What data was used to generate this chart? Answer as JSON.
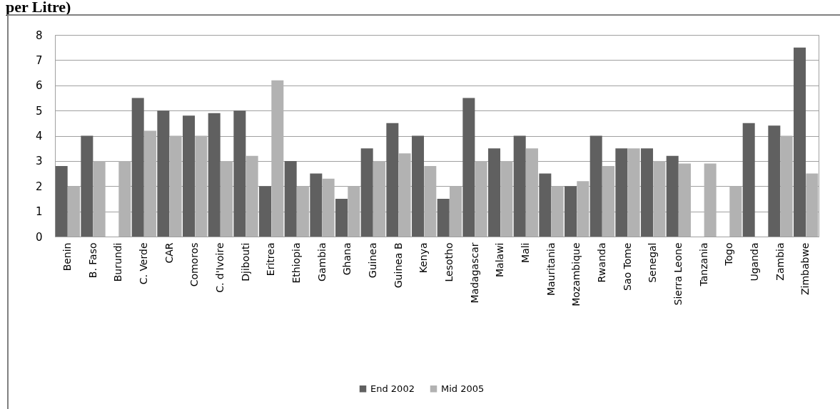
{
  "chart_data": {
    "type": "bar",
    "title": "per Litre)",
    "categories": [
      "Benin",
      "B. Faso",
      "Burundi",
      "C. Verde",
      "CAR",
      "Comoros",
      "C. d'Ivoire",
      "Djibouti",
      "Eritrea",
      "Ethiopia",
      "Gambia",
      "Ghana",
      "Guinea",
      "Guinea B",
      "Kenya",
      "Lesotho",
      "Madagascar",
      "Malawi",
      "Mali",
      "Mauritania",
      "Mozambique",
      "Rwanda",
      "Sao Tome",
      "Senegal",
      "Sierra Leone",
      "Tanzania",
      "Togo",
      "Uganda",
      "Zambia",
      "Zimbabwe"
    ],
    "series": [
      {
        "name": "End 2002",
        "color": "#606060",
        "values": [
          2.8,
          4,
          null,
          5.5,
          5,
          4.8,
          4.9,
          5,
          2,
          3,
          2.5,
          1.5,
          3.5,
          4.5,
          4,
          1.5,
          5.5,
          3.5,
          4,
          2.5,
          2,
          4,
          3.5,
          3.5,
          3.2,
          null,
          null,
          4.5,
          4.4,
          7.5
        ]
      },
      {
        "name": "Mid 2005",
        "color": "#b2b2b2",
        "values": [
          2,
          3,
          3,
          4.2,
          4,
          4,
          3,
          3.2,
          6.2,
          2,
          2.3,
          2,
          3,
          3.3,
          2.8,
          2,
          3,
          3,
          3.5,
          2,
          2.2,
          2.8,
          3.5,
          3,
          2.9,
          2.9,
          2,
          null,
          4,
          2.5
        ]
      }
    ],
    "ylim": [
      0,
      8
    ],
    "yticks": [
      0,
      1,
      2,
      3,
      4,
      5,
      6,
      7,
      8
    ],
    "grid": "y",
    "legend": "bottom"
  }
}
